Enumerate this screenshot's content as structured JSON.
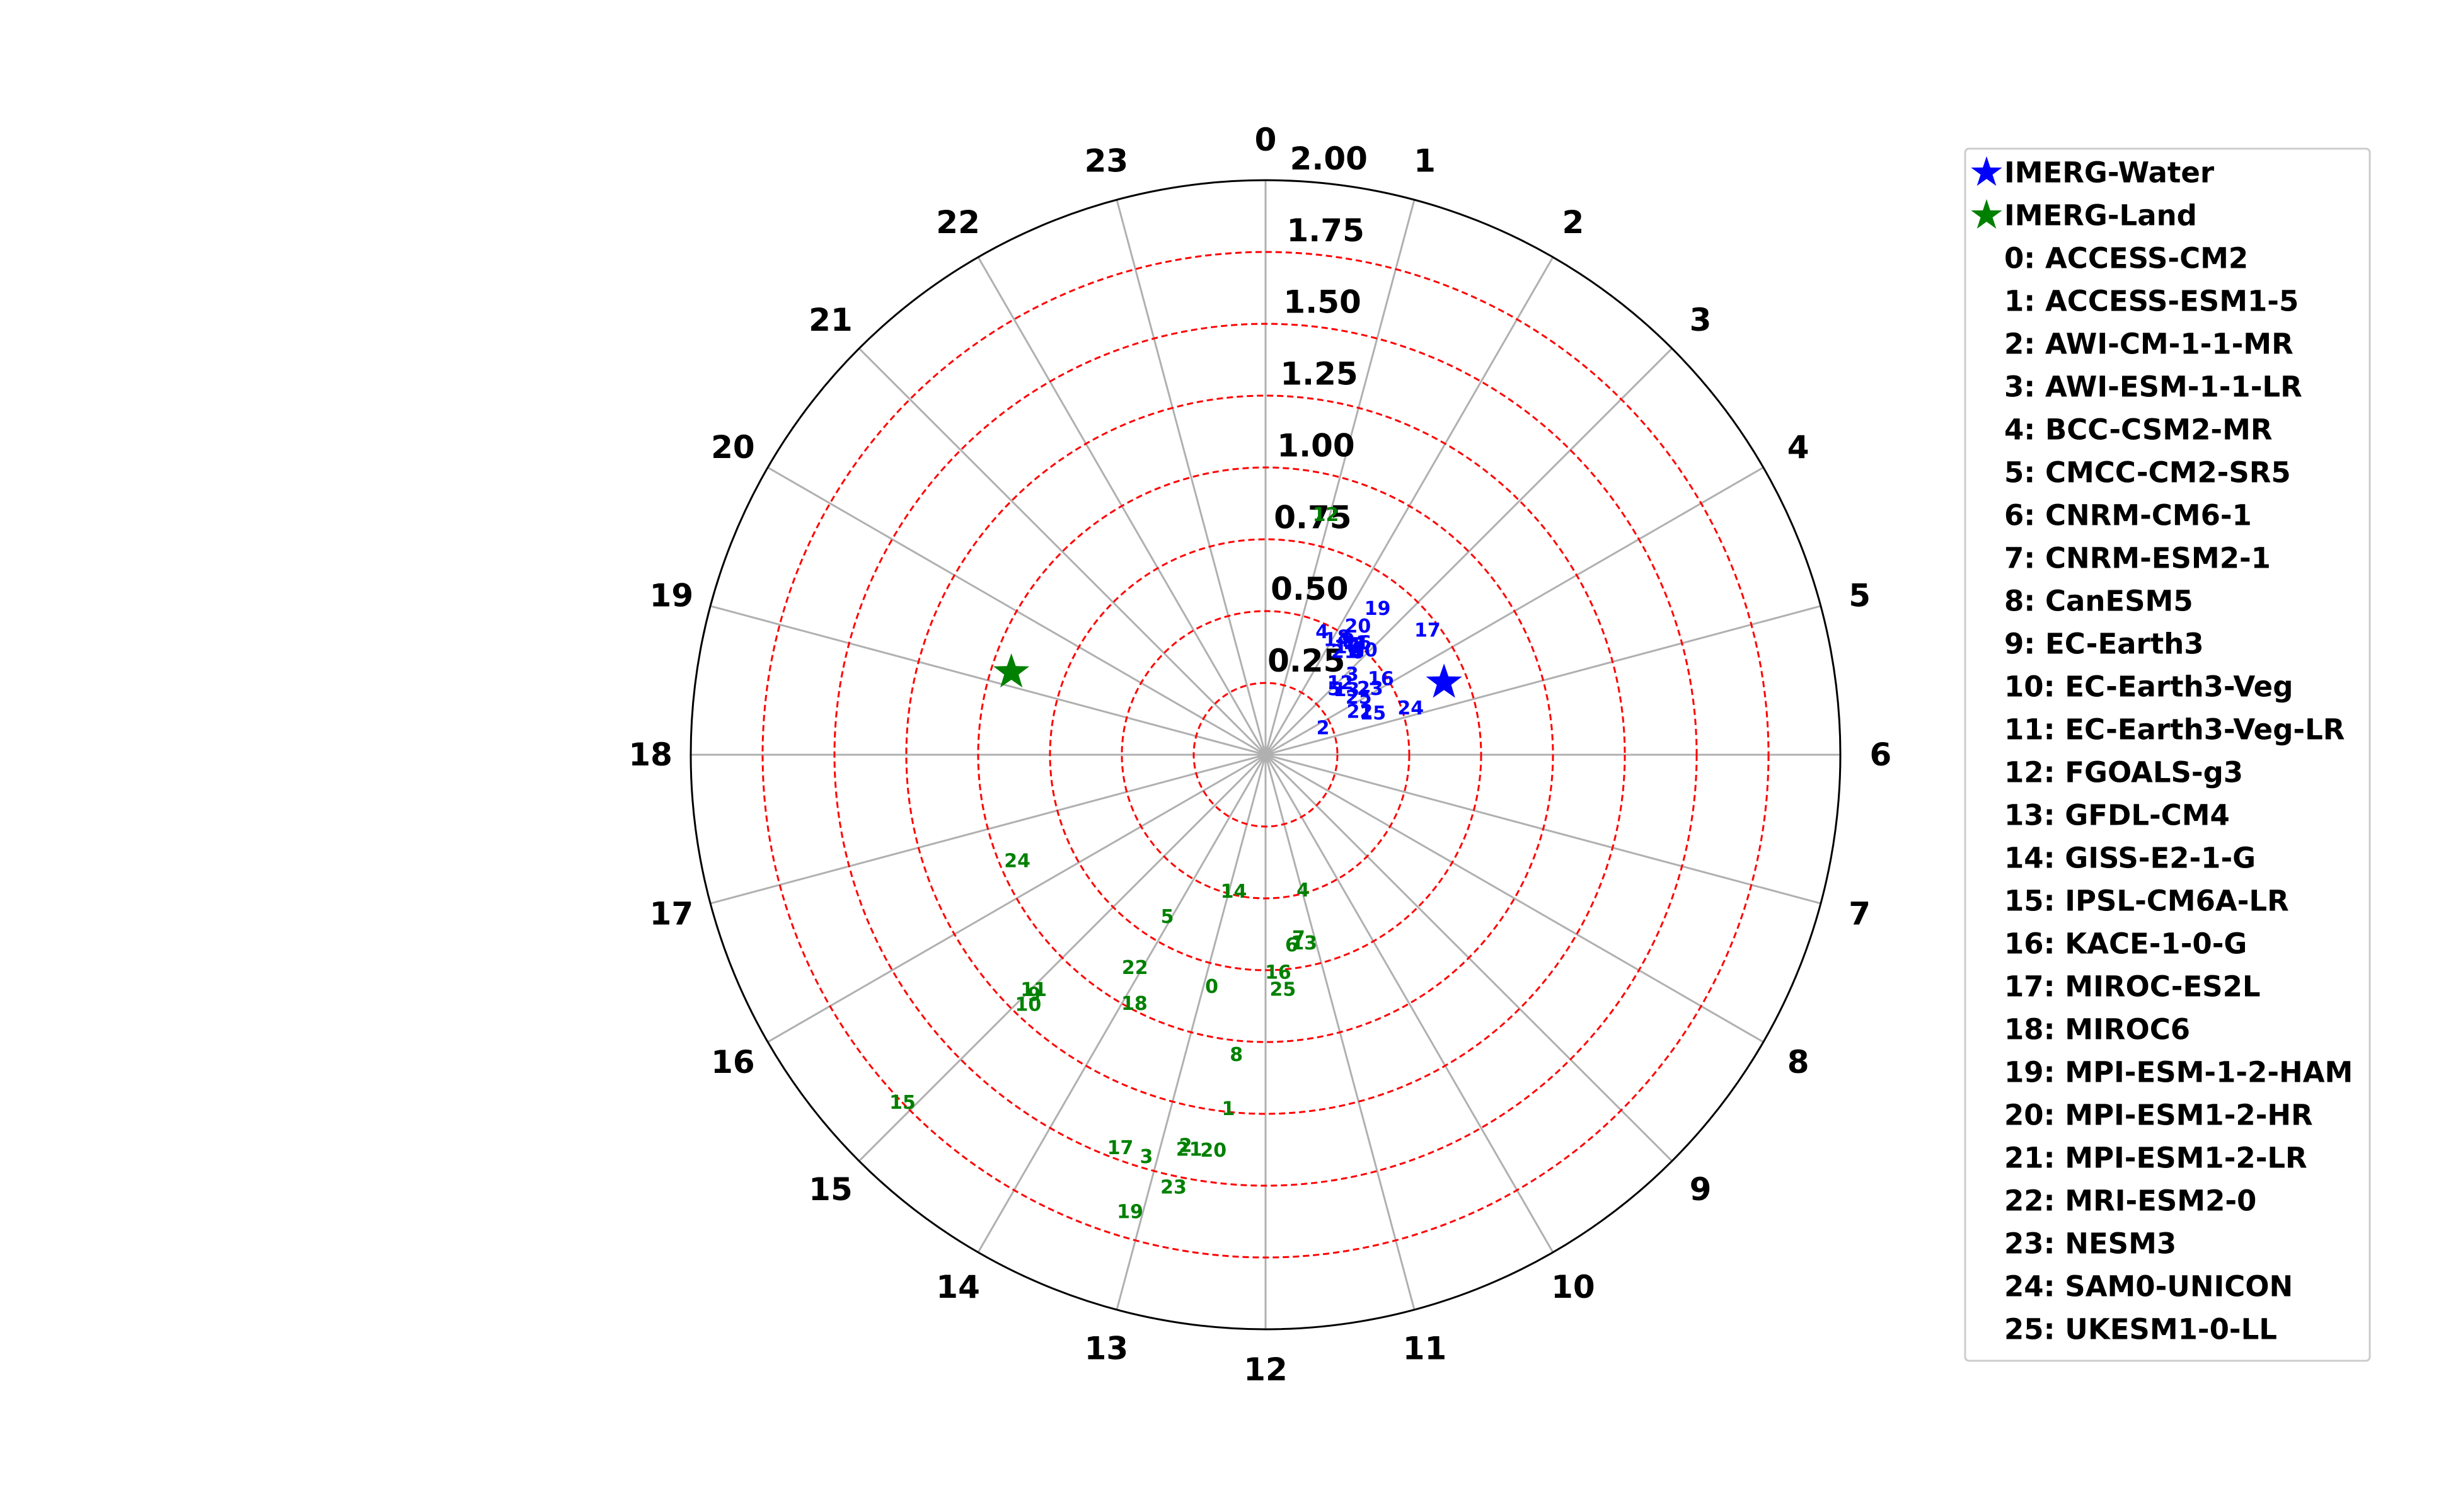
{
  "chart_data": {
    "type": "scatter",
    "projection": "polar",
    "theta_ticks": [
      "0",
      "1",
      "2",
      "3",
      "4",
      "5",
      "6",
      "7",
      "8",
      "9",
      "10",
      "11",
      "12",
      "13",
      "14",
      "15",
      "16",
      "17",
      "18",
      "19",
      "20",
      "21",
      "22",
      "23"
    ],
    "r_ticks": [
      "0.25",
      "0.50",
      "0.75",
      "1.00",
      "1.25",
      "1.50",
      "1.75",
      "2.00"
    ],
    "rlim": [
      0,
      2.0
    ],
    "theta_unit": "hour",
    "theta_direction": "clockwise",
    "theta_zero": "top",
    "grid": true,
    "r_grid_style": "red-dashed",
    "legend_position": "right",
    "series": [
      {
        "name": "IMERG-Water",
        "color": "#0000ff",
        "marker": "star",
        "points": [
          {
            "hour": 4.53,
            "r": 0.67
          }
        ]
      },
      {
        "name": "IMERG-Land",
        "color": "#008000",
        "marker": "star",
        "points": [
          {
            "hour": 19.2,
            "r": 0.93
          }
        ]
      }
    ],
    "water_models": [
      {
        "label": "0",
        "hour": 2.8,
        "r": 0.48
      },
      {
        "label": "1",
        "hour": 2.65,
        "r": 0.49
      },
      {
        "label": "2",
        "hour": 4.35,
        "r": 0.22
      },
      {
        "label": "3",
        "hour": 3.15,
        "r": 0.41
      },
      {
        "label": "4",
        "hour": 1.65,
        "r": 0.47
      },
      {
        "label": "5",
        "hour": 3.08,
        "r": 0.33
      },
      {
        "label": "6",
        "hour": 2.78,
        "r": 0.52
      },
      {
        "label": "7",
        "hour": 2.68,
        "r": 0.5
      },
      {
        "label": "8",
        "hour": 2.25,
        "r": 0.49
      },
      {
        "label": "9",
        "hour": 2.4,
        "r": 0.49
      },
      {
        "label": "10",
        "hour": 2.9,
        "r": 0.5
      },
      {
        "label": "11",
        "hour": 2.6,
        "r": 0.5
      },
      {
        "label": "12",
        "hour": 3.08,
        "r": 0.36
      },
      {
        "label": "13",
        "hour": 3.43,
        "r": 0.36
      },
      {
        "label": "14",
        "hour": 2.12,
        "r": 0.47
      },
      {
        "label": "15",
        "hour": 4.6,
        "r": 0.4
      },
      {
        "label": "16",
        "hour": 3.78,
        "r": 0.48
      },
      {
        "label": "17",
        "hour": 3.5,
        "r": 0.71
      },
      {
        "label": "18",
        "hour": 2.48,
        "r": 0.47
      },
      {
        "label": "19",
        "hour": 2.5,
        "r": 0.64
      },
      {
        "label": "20",
        "hour": 2.38,
        "r": 0.55
      },
      {
        "label": "21",
        "hour": 2.5,
        "r": 0.45
      },
      {
        "label": "22",
        "hour": 4.37,
        "r": 0.36
      },
      {
        "label": "23",
        "hour": 3.85,
        "r": 0.43
      },
      {
        "label": "24",
        "hour": 4.82,
        "r": 0.53
      },
      {
        "label": "25",
        "hour": 3.9,
        "r": 0.38
      }
    ],
    "land_models": [
      {
        "label": "0",
        "hour": 12.87,
        "r": 0.83
      },
      {
        "label": "1",
        "hour": 12.4,
        "r": 1.24
      },
      {
        "label": "2",
        "hour": 12.77,
        "r": 1.39
      },
      {
        "label": "3",
        "hour": 13.1,
        "r": 1.46
      },
      {
        "label": "4",
        "hour": 10.97,
        "r": 0.49
      },
      {
        "label": "5",
        "hour": 14.08,
        "r": 0.66
      },
      {
        "label": "6",
        "hour": 11.48,
        "r": 0.67
      },
      {
        "label": "7",
        "hour": 11.32,
        "r": 0.65
      },
      {
        "label": "8",
        "hour": 12.37,
        "r": 1.05
      },
      {
        "label": "9",
        "hour": 14.93,
        "r": 1.16
      },
      {
        "label": "10",
        "hour": 14.9,
        "r": 1.2
      },
      {
        "label": "11",
        "hour": 14.97,
        "r": 1.15
      },
      {
        "label": "12",
        "hour": 0.94,
        "r": 0.86
      },
      {
        "label": "13",
        "hour": 11.23,
        "r": 0.67
      },
      {
        "label": "14",
        "hour": 12.87,
        "r": 0.49
      },
      {
        "label": "15",
        "hour": 15.08,
        "r": 1.75
      },
      {
        "label": "16",
        "hour": 11.78,
        "r": 0.76
      },
      {
        "label": "17",
        "hour": 13.35,
        "r": 1.46
      },
      {
        "label": "18",
        "hour": 13.85,
        "r": 0.98
      },
      {
        "label": "19",
        "hour": 13.1,
        "r": 1.66
      },
      {
        "label": "20",
        "hour": 12.5,
        "r": 1.39
      },
      {
        "label": "21",
        "hour": 12.73,
        "r": 1.4
      },
      {
        "label": "22",
        "hour": 14.1,
        "r": 0.87
      },
      {
        "label": "23",
        "hour": 12.8,
        "r": 1.54
      },
      {
        "label": "24",
        "hour": 16.45,
        "r": 0.94
      },
      {
        "label": "25",
        "hour": 11.72,
        "r": 0.82
      }
    ],
    "colors": {
      "water": "#0000ff",
      "land": "#008000",
      "rgrid": "#ff0000",
      "thetagrid": "#b0b0b0"
    }
  },
  "legend": {
    "stars": [
      {
        "label": "IMERG-Water",
        "color": "#0000ff"
      },
      {
        "label": "IMERG-Land",
        "color": "#008000"
      }
    ],
    "models": [
      "0: ACCESS-CM2",
      "1: ACCESS-ESM1-5",
      "2: AWI-CM-1-1-MR",
      "3: AWI-ESM-1-1-LR",
      "4: BCC-CSM2-MR",
      "5: CMCC-CM2-SR5",
      "6: CNRM-CM6-1",
      "7: CNRM-ESM2-1",
      "8: CanESM5",
      "9: EC-Earth3",
      "10: EC-Earth3-Veg",
      "11: EC-Earth3-Veg-LR",
      "12: FGOALS-g3",
      "13: GFDL-CM4",
      "14: GISS-E2-1-G",
      "15: IPSL-CM6A-LR",
      "16: KACE-1-0-G",
      "17: MIROC-ES2L",
      "18: MIROC6",
      "19: MPI-ESM-1-2-HAM",
      "20: MPI-ESM1-2-HR",
      "21: MPI-ESM1-2-LR",
      "22: MRI-ESM2-0",
      "23: NESM3",
      "24: SAM0-UNICON",
      "25: UKESM1-0-LL"
    ]
  }
}
